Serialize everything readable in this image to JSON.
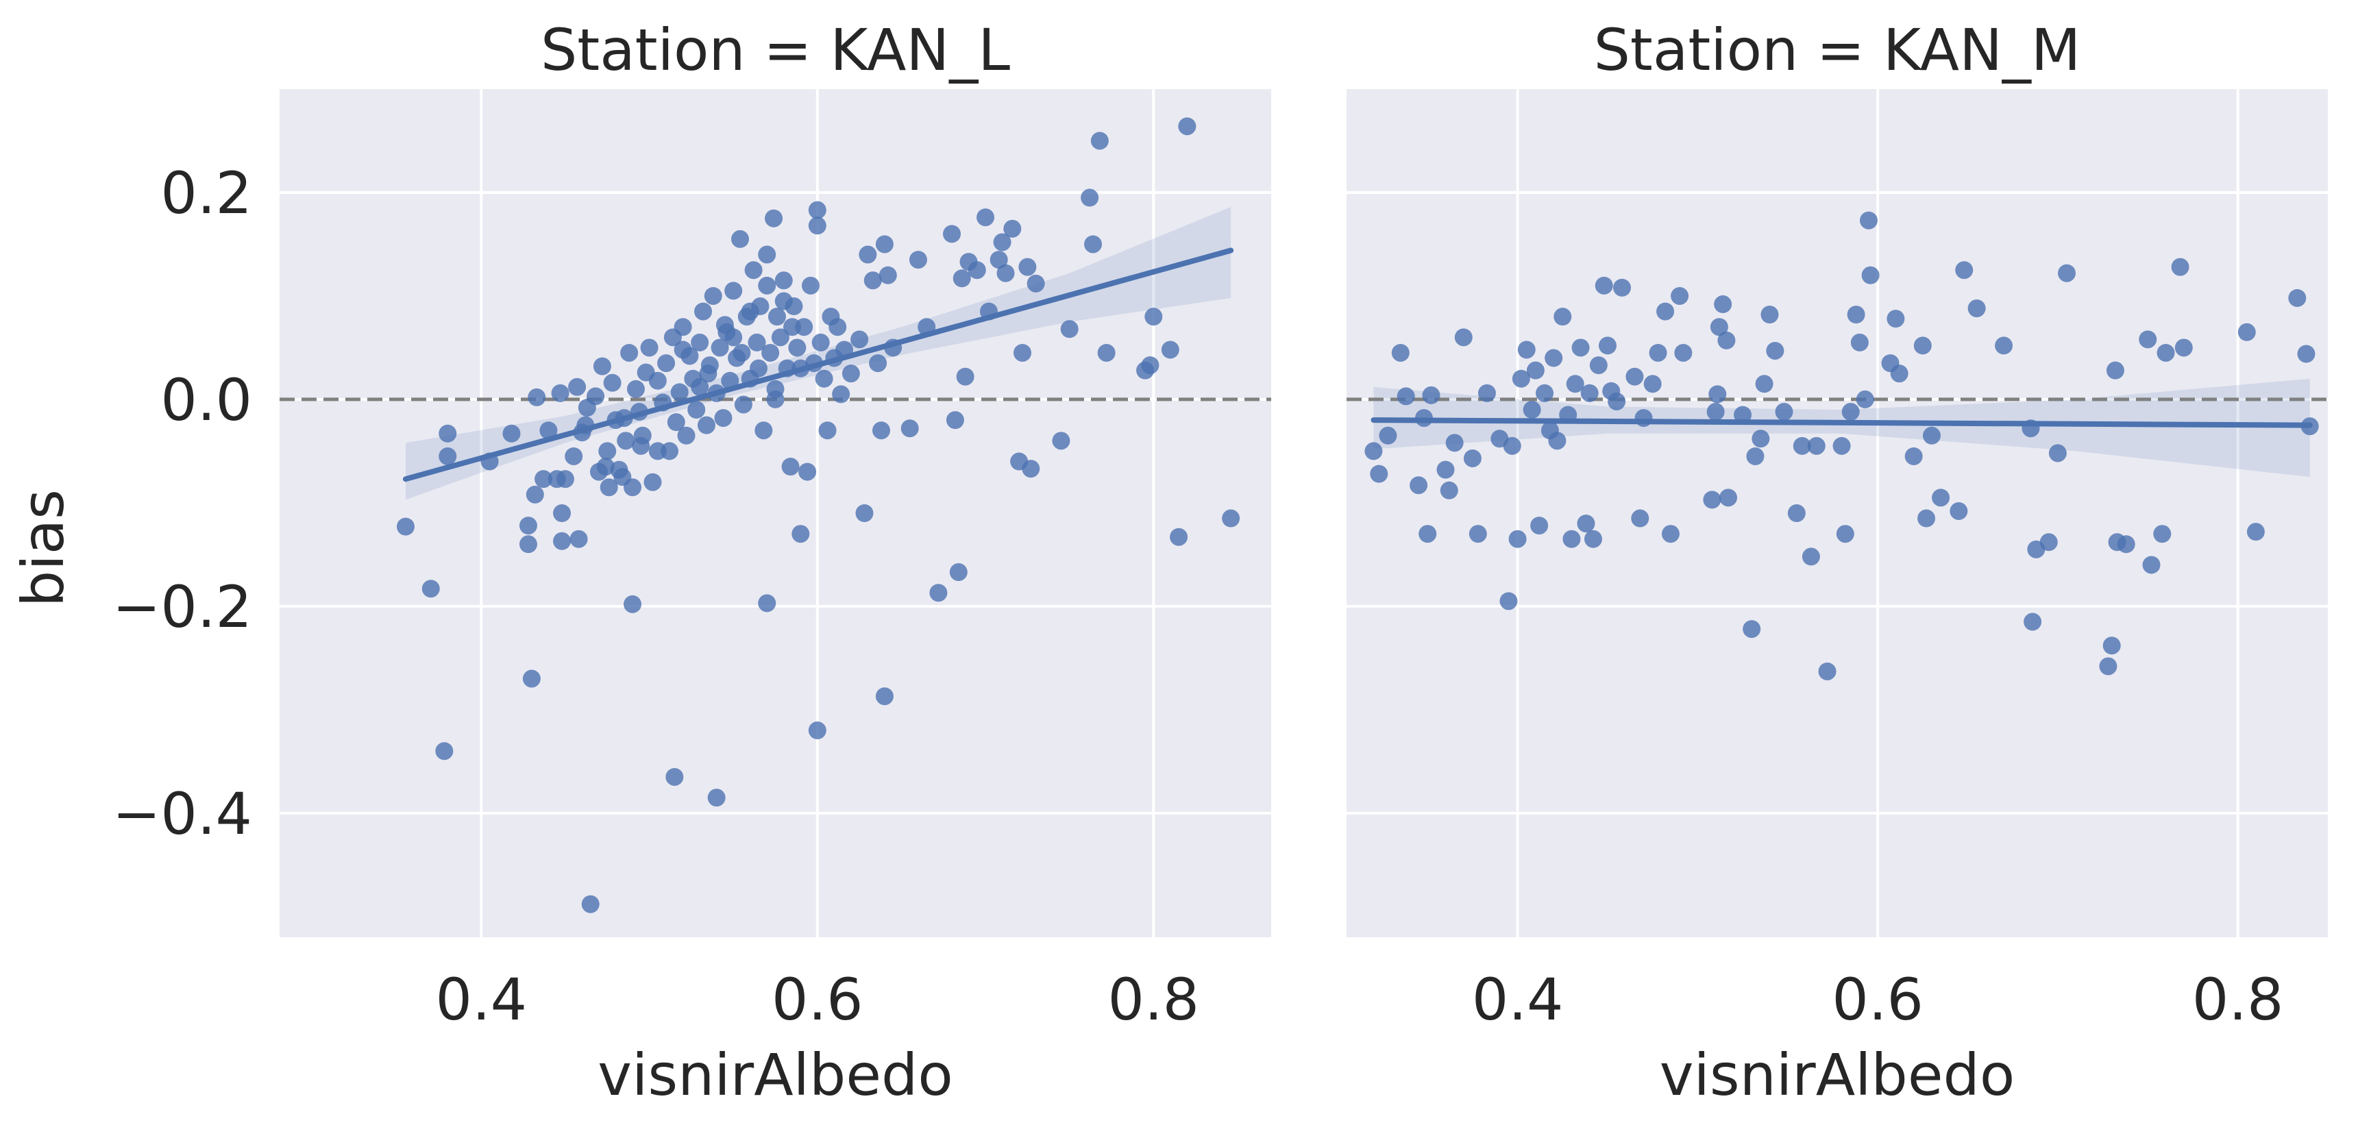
{
  "figure": {
    "shared_ylabel": "bias",
    "colors": {
      "panel_bg": "#EAEAF2",
      "grid": "#FFFFFF",
      "points": "#4C72B0",
      "fit_line": "#4C72B0",
      "ci_band": "#4C72B0",
      "zero_line": "#808080",
      "text": "#262626"
    }
  },
  "chart_data": [
    {
      "type": "scatter",
      "title": "Station = KAN_L",
      "xlabel": "visnirAlbedo",
      "ylabel": "bias",
      "xlim": [
        0.28,
        0.87
      ],
      "ylim": [
        -0.52,
        0.3
      ],
      "xticks": [
        0.4,
        0.6,
        0.8
      ],
      "xtick_labels": [
        "0.4",
        "0.6",
        "0.8"
      ],
      "yticks": [
        0.2,
        0.0,
        -0.2,
        -0.4
      ],
      "ytick_labels": [
        "0.2",
        "0.0",
        "−0.2",
        "−0.4"
      ],
      "grid": true,
      "reference_line": {
        "y": 0.0,
        "style": "dashed"
      },
      "regression": {
        "x0": 0.355,
        "y0": -0.077,
        "x1": 0.846,
        "y1": 0.144
      },
      "ci_band": [
        {
          "x": 0.355,
          "lo": -0.097,
          "hi": -0.042
        },
        {
          "x": 0.45,
          "lo": -0.042,
          "hi": -0.016
        },
        {
          "x": 0.55,
          "lo": 0.004,
          "hi": 0.024
        },
        {
          "x": 0.65,
          "lo": 0.043,
          "hi": 0.07
        },
        {
          "x": 0.75,
          "lo": 0.075,
          "hi": 0.122
        },
        {
          "x": 0.846,
          "lo": 0.098,
          "hi": 0.186
        }
      ],
      "points": [
        [
          0.355,
          -0.123
        ],
        [
          0.37,
          -0.183
        ],
        [
          0.378,
          -0.34
        ],
        [
          0.38,
          -0.055
        ],
        [
          0.38,
          -0.033
        ],
        [
          0.405,
          -0.06
        ],
        [
          0.418,
          -0.033
        ],
        [
          0.428,
          -0.14
        ],
        [
          0.428,
          -0.122
        ],
        [
          0.43,
          -0.27
        ],
        [
          0.432,
          -0.092
        ],
        [
          0.433,
          0.002
        ],
        [
          0.437,
          -0.077
        ],
        [
          0.44,
          -0.03
        ],
        [
          0.445,
          -0.077
        ],
        [
          0.447,
          0.006
        ],
        [
          0.448,
          -0.11
        ],
        [
          0.448,
          -0.137
        ],
        [
          0.45,
          -0.077
        ],
        [
          0.455,
          -0.055
        ],
        [
          0.457,
          0.012
        ],
        [
          0.458,
          -0.135
        ],
        [
          0.46,
          -0.032
        ],
        [
          0.462,
          -0.025
        ],
        [
          0.463,
          -0.008
        ],
        [
          0.465,
          -0.488
        ],
        [
          0.468,
          0.003
        ],
        [
          0.47,
          -0.07
        ],
        [
          0.472,
          0.032
        ],
        [
          0.474,
          -0.065
        ],
        [
          0.476,
          -0.085
        ],
        [
          0.478,
          0.016
        ],
        [
          0.48,
          -0.02
        ],
        [
          0.482,
          -0.068
        ],
        [
          0.484,
          -0.075
        ],
        [
          0.486,
          -0.04
        ],
        [
          0.488,
          0.045
        ],
        [
          0.49,
          -0.085
        ],
        [
          0.492,
          0.01
        ],
        [
          0.494,
          -0.012
        ],
        [
          0.496,
          -0.035
        ],
        [
          0.498,
          0.026
        ],
        [
          0.49,
          -0.198
        ],
        [
          0.5,
          0.05
        ],
        [
          0.502,
          -0.08
        ],
        [
          0.505,
          0.018
        ],
        [
          0.508,
          -0.003
        ],
        [
          0.51,
          0.035
        ],
        [
          0.512,
          -0.05
        ],
        [
          0.514,
          0.06
        ],
        [
          0.516,
          -0.022
        ],
        [
          0.518,
          0.007
        ],
        [
          0.52,
          0.07
        ],
        [
          0.515,
          -0.365
        ],
        [
          0.522,
          -0.035
        ],
        [
          0.524,
          0.042
        ],
        [
          0.526,
          0.02
        ],
        [
          0.528,
          -0.01
        ],
        [
          0.53,
          0.055
        ],
        [
          0.532,
          0.085
        ],
        [
          0.534,
          -0.025
        ],
        [
          0.536,
          0.033
        ],
        [
          0.538,
          0.1
        ],
        [
          0.54,
          0.006
        ],
        [
          0.542,
          0.05
        ],
        [
          0.544,
          -0.018
        ],
        [
          0.546,
          0.065
        ],
        [
          0.54,
          -0.385
        ],
        [
          0.548,
          0.018
        ],
        [
          0.55,
          0.105
        ],
        [
          0.552,
          0.04
        ],
        [
          0.554,
          0.155
        ],
        [
          0.556,
          -0.005
        ],
        [
          0.558,
          0.08
        ],
        [
          0.56,
          0.02
        ],
        [
          0.562,
          0.125
        ],
        [
          0.564,
          0.055
        ],
        [
          0.566,
          0.09
        ],
        [
          0.568,
          -0.03
        ],
        [
          0.57,
          0.11
        ],
        [
          0.572,
          0.045
        ],
        [
          0.574,
          0.175
        ],
        [
          0.575,
          0.01
        ],
        [
          0.576,
          0.08
        ],
        [
          0.578,
          0.06
        ],
        [
          0.58,
          0.115
        ],
        [
          0.582,
          0.03
        ],
        [
          0.584,
          -0.065
        ],
        [
          0.586,
          0.09
        ],
        [
          0.588,
          0.05
        ],
        [
          0.59,
          -0.13
        ],
        [
          0.592,
          0.07
        ],
        [
          0.594,
          -0.07
        ],
        [
          0.596,
          0.11
        ],
        [
          0.598,
          0.035
        ],
        [
          0.6,
          0.168
        ],
        [
          0.6,
          0.183
        ],
        [
          0.602,
          0.055
        ],
        [
          0.604,
          0.02
        ],
        [
          0.606,
          -0.03
        ],
        [
          0.608,
          0.08
        ],
        [
          0.61,
          0.04
        ],
        [
          0.612,
          0.07
        ],
        [
          0.614,
          0.005
        ],
        [
          0.616,
          0.048
        ],
        [
          0.57,
          -0.197
        ],
        [
          0.6,
          -0.32
        ],
        [
          0.62,
          0.025
        ],
        [
          0.625,
          0.058
        ],
        [
          0.628,
          -0.11
        ],
        [
          0.63,
          0.14
        ],
        [
          0.633,
          0.115
        ],
        [
          0.636,
          0.035
        ],
        [
          0.638,
          -0.03
        ],
        [
          0.64,
          0.15
        ],
        [
          0.642,
          0.12
        ],
        [
          0.645,
          0.05
        ],
        [
          0.64,
          -0.287
        ],
        [
          0.655,
          -0.028
        ],
        [
          0.66,
          0.135
        ],
        [
          0.665,
          0.07
        ],
        [
          0.672,
          -0.187
        ],
        [
          0.68,
          0.16
        ],
        [
          0.682,
          -0.02
        ],
        [
          0.684,
          -0.167
        ],
        [
          0.686,
          0.117
        ],
        [
          0.688,
          0.022
        ],
        [
          0.69,
          0.133
        ],
        [
          0.695,
          0.125
        ],
        [
          0.7,
          0.176
        ],
        [
          0.702,
          0.085
        ],
        [
          0.708,
          0.135
        ],
        [
          0.71,
          0.152
        ],
        [
          0.712,
          0.122
        ],
        [
          0.716,
          0.165
        ],
        [
          0.72,
          -0.06
        ],
        [
          0.722,
          0.045
        ],
        [
          0.725,
          0.128
        ],
        [
          0.727,
          -0.067
        ],
        [
          0.73,
          0.112
        ],
        [
          0.745,
          -0.04
        ],
        [
          0.75,
          0.068
        ],
        [
          0.762,
          0.195
        ],
        [
          0.764,
          0.15
        ],
        [
          0.768,
          0.25
        ],
        [
          0.772,
          0.045
        ],
        [
          0.795,
          0.028
        ],
        [
          0.798,
          0.033
        ],
        [
          0.8,
          0.08
        ],
        [
          0.81,
          0.048
        ],
        [
          0.815,
          -0.133
        ],
        [
          0.82,
          0.264
        ],
        [
          0.846,
          -0.115
        ],
        [
          0.56,
          0.085
        ],
        [
          0.55,
          0.06
        ],
        [
          0.565,
          0.03
        ],
        [
          0.58,
          0.095
        ],
        [
          0.57,
          0.14
        ],
        [
          0.585,
          0.07
        ],
        [
          0.555,
          0.045
        ],
        [
          0.575,
          0.0
        ],
        [
          0.59,
          0.03
        ],
        [
          0.52,
          0.048
        ],
        [
          0.53,
          0.012
        ],
        [
          0.505,
          -0.05
        ],
        [
          0.495,
          -0.045
        ],
        [
          0.485,
          -0.018
        ],
        [
          0.475,
          -0.05
        ],
        [
          0.545,
          0.072
        ],
        [
          0.535,
          0.025
        ]
      ]
    },
    {
      "type": "scatter",
      "title": "Station = KAN_M",
      "xlabel": "visnirAlbedo",
      "ylabel": "",
      "xlim": [
        0.305,
        0.85
      ],
      "ylim": [
        -0.52,
        0.3
      ],
      "xticks": [
        0.4,
        0.6,
        0.8
      ],
      "xtick_labels": [
        "0.4",
        "0.6",
        "0.8"
      ],
      "yticks": [
        0.2,
        0.0,
        -0.2,
        -0.4
      ],
      "grid": true,
      "reference_line": {
        "y": 0.0,
        "style": "dashed"
      },
      "regression": {
        "x0": 0.32,
        "y0": -0.02,
        "x1": 0.84,
        "y1": -0.025
      },
      "ci_band": [
        {
          "x": 0.32,
          "lo": -0.048,
          "hi": 0.012
        },
        {
          "x": 0.45,
          "lo": -0.033,
          "hi": -0.007
        },
        {
          "x": 0.58,
          "lo": -0.033,
          "hi": -0.01
        },
        {
          "x": 0.71,
          "lo": -0.05,
          "hi": 0.0
        },
        {
          "x": 0.84,
          "lo": -0.075,
          "hi": 0.02
        }
      ],
      "points": [
        [
          0.32,
          -0.05
        ],
        [
          0.323,
          -0.072
        ],
        [
          0.328,
          -0.035
        ],
        [
          0.335,
          0.045
        ],
        [
          0.338,
          0.003
        ],
        [
          0.345,
          -0.083
        ],
        [
          0.348,
          -0.018
        ],
        [
          0.35,
          -0.13
        ],
        [
          0.352,
          0.004
        ],
        [
          0.36,
          -0.068
        ],
        [
          0.362,
          -0.088
        ],
        [
          0.365,
          -0.042
        ],
        [
          0.37,
          0.06
        ],
        [
          0.375,
          -0.057
        ],
        [
          0.378,
          -0.13
        ],
        [
          0.383,
          0.006
        ],
        [
          0.39,
          -0.038
        ],
        [
          0.395,
          -0.195
        ],
        [
          0.397,
          -0.045
        ],
        [
          0.4,
          -0.135
        ],
        [
          0.402,
          0.02
        ],
        [
          0.405,
          0.048
        ],
        [
          0.408,
          -0.01
        ],
        [
          0.41,
          0.028
        ],
        [
          0.412,
          -0.122
        ],
        [
          0.415,
          0.006
        ],
        [
          0.418,
          -0.03
        ],
        [
          0.42,
          0.04
        ],
        [
          0.422,
          -0.04
        ],
        [
          0.425,
          0.08
        ],
        [
          0.428,
          -0.015
        ],
        [
          0.43,
          -0.135
        ],
        [
          0.432,
          0.015
        ],
        [
          0.435,
          0.05
        ],
        [
          0.438,
          -0.12
        ],
        [
          0.44,
          0.006
        ],
        [
          0.442,
          -0.135
        ],
        [
          0.445,
          0.033
        ],
        [
          0.448,
          0.11
        ],
        [
          0.45,
          0.052
        ],
        [
          0.452,
          0.008
        ],
        [
          0.455,
          -0.002
        ],
        [
          0.458,
          0.108
        ],
        [
          0.465,
          0.022
        ],
        [
          0.468,
          -0.115
        ],
        [
          0.47,
          -0.018
        ],
        [
          0.475,
          0.015
        ],
        [
          0.478,
          0.045
        ],
        [
          0.482,
          0.085
        ],
        [
          0.485,
          -0.13
        ],
        [
          0.49,
          0.1
        ],
        [
          0.492,
          0.045
        ],
        [
          0.508,
          -0.097
        ],
        [
          0.51,
          -0.012
        ],
        [
          0.511,
          0.005
        ],
        [
          0.512,
          0.07
        ],
        [
          0.514,
          0.092
        ],
        [
          0.516,
          0.057
        ],
        [
          0.517,
          -0.095
        ],
        [
          0.525,
          -0.015
        ],
        [
          0.53,
          -0.222
        ],
        [
          0.532,
          -0.055
        ],
        [
          0.535,
          -0.038
        ],
        [
          0.537,
          0.015
        ],
        [
          0.54,
          0.082
        ],
        [
          0.543,
          0.047
        ],
        [
          0.548,
          -0.012
        ],
        [
          0.555,
          -0.11
        ],
        [
          0.558,
          -0.045
        ],
        [
          0.563,
          -0.152
        ],
        [
          0.566,
          -0.045
        ],
        [
          0.572,
          -0.263
        ],
        [
          0.58,
          -0.045
        ],
        [
          0.582,
          -0.13
        ],
        [
          0.585,
          -0.012
        ],
        [
          0.588,
          0.082
        ],
        [
          0.59,
          0.055
        ],
        [
          0.593,
          0.0
        ],
        [
          0.595,
          0.173
        ],
        [
          0.596,
          0.12
        ],
        [
          0.607,
          0.035
        ],
        [
          0.61,
          0.078
        ],
        [
          0.612,
          0.025
        ],
        [
          0.62,
          -0.055
        ],
        [
          0.625,
          0.052
        ],
        [
          0.627,
          -0.115
        ],
        [
          0.63,
          -0.035
        ],
        [
          0.635,
          -0.095
        ],
        [
          0.645,
          -0.108
        ],
        [
          0.648,
          0.125
        ],
        [
          0.655,
          0.088
        ],
        [
          0.67,
          0.052
        ],
        [
          0.685,
          -0.028
        ],
        [
          0.686,
          -0.215
        ],
        [
          0.688,
          -0.145
        ],
        [
          0.695,
          -0.138
        ],
        [
          0.7,
          -0.052
        ],
        [
          0.705,
          0.122
        ],
        [
          0.728,
          -0.258
        ],
        [
          0.73,
          -0.238
        ],
        [
          0.732,
          0.028
        ],
        [
          0.733,
          -0.138
        ],
        [
          0.738,
          -0.14
        ],
        [
          0.75,
          0.058
        ],
        [
          0.752,
          -0.16
        ],
        [
          0.758,
          -0.13
        ],
        [
          0.76,
          0.045
        ],
        [
          0.768,
          0.128
        ],
        [
          0.77,
          0.05
        ],
        [
          0.805,
          0.065
        ],
        [
          0.81,
          -0.128
        ],
        [
          0.833,
          0.098
        ],
        [
          0.838,
          0.044
        ],
        [
          0.84,
          -0.026
        ]
      ]
    }
  ]
}
